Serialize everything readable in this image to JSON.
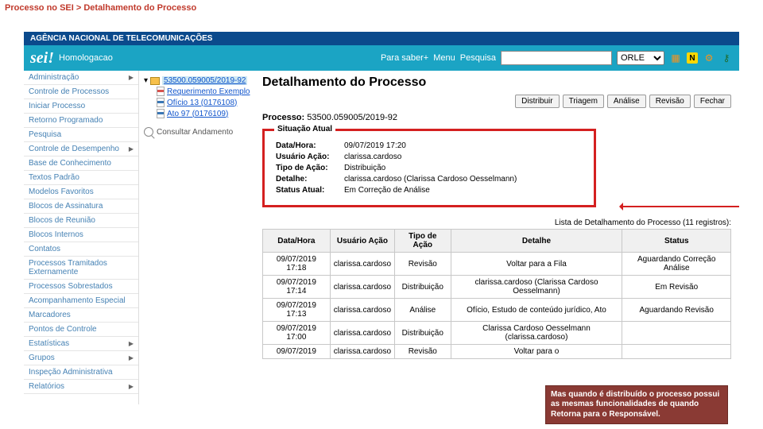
{
  "breadcrumb": "Processo no SEI > Detalhamento do Processo",
  "agency_bar": "AGÊNCIA NACIONAL DE TELECOMUNICAÇÕES",
  "header": {
    "logo": "sei!",
    "environment": "Homologacao",
    "para_saber": "Para saber+",
    "menu": "Menu",
    "pesquisa_label": "Pesquisa",
    "search_value": "",
    "unit": "ORLE"
  },
  "sidebar": {
    "items": [
      {
        "label": "Administração",
        "arrow": true
      },
      {
        "label": "Controle de Processos",
        "arrow": false
      },
      {
        "label": "Iniciar Processo",
        "arrow": false
      },
      {
        "label": "Retorno Programado",
        "arrow": false
      },
      {
        "label": "Pesquisa",
        "arrow": false
      },
      {
        "label": "Controle de Desempenho",
        "arrow": true
      },
      {
        "label": "Base de Conhecimento",
        "arrow": false
      },
      {
        "label": "Textos Padrão",
        "arrow": false
      },
      {
        "label": "Modelos Favoritos",
        "arrow": false
      },
      {
        "label": "Blocos de Assinatura",
        "arrow": false
      },
      {
        "label": "Blocos de Reunião",
        "arrow": false
      },
      {
        "label": "Blocos Internos",
        "arrow": false
      },
      {
        "label": "Contatos",
        "arrow": false
      },
      {
        "label": "Processos Tramitados Externamente",
        "arrow": false
      },
      {
        "label": "Processos Sobrestados",
        "arrow": false
      },
      {
        "label": "Acompanhamento Especial",
        "arrow": false
      },
      {
        "label": "Marcadores",
        "arrow": false
      },
      {
        "label": "Pontos de Controle",
        "arrow": false
      },
      {
        "label": "Estatísticas",
        "arrow": true
      },
      {
        "label": "Grupos",
        "arrow": true
      },
      {
        "label": "Inspeção Administrativa",
        "arrow": false
      },
      {
        "label": "Relatórios",
        "arrow": true
      }
    ]
  },
  "tree": {
    "root": "53500.059005/2019-92",
    "docs": [
      {
        "label": "Requerimento Exemplo",
        "type": "pdf"
      },
      {
        "label": "Ofício 13 (0176108)",
        "type": "doc"
      },
      {
        "label": "Ato 97 (0176109)",
        "type": "doc"
      }
    ],
    "consult": "Consultar Andamento"
  },
  "content": {
    "title": "Detalhamento do Processo",
    "buttons": [
      "Distribuir",
      "Triagem",
      "Análise",
      "Revisão",
      "Fechar"
    ],
    "processo_label": "Processo:",
    "processo_num": "53500.059005/2019-92",
    "status_legend": "Situação Atual",
    "status_rows": [
      {
        "k": "Data/Hora:",
        "v": "09/07/2019 17:20"
      },
      {
        "k": "Usuário Ação:",
        "v": "clarissa.cardoso"
      },
      {
        "k": "Tipo de Ação:",
        "v": "Distribuição"
      },
      {
        "k": "Detalhe:",
        "v": "clarissa.cardoso (Clarissa Cardoso Oesselmann)"
      },
      {
        "k": "Status Atual:",
        "v": "Em Correção de Análise"
      }
    ],
    "list_caption": "Lista de Detalhamento do Processo (11 registros):",
    "table": {
      "headers": [
        "Data/Hora",
        "Usuário Ação",
        "Tipo de Ação",
        "Detalhe",
        "Status"
      ],
      "rows": [
        [
          "09/07/2019 17:18",
          "clarissa.cardoso",
          "Revisão",
          "Voltar para a Fila",
          "Aguardando Correção Análise"
        ],
        [
          "09/07/2019 17:14",
          "clarissa.cardoso",
          "Distribuição",
          "clarissa.cardoso (Clarissa Cardoso Oesselmann)",
          "Em Revisão"
        ],
        [
          "09/07/2019 17:13",
          "clarissa.cardoso",
          "Análise",
          "Ofício, Estudo de conteúdo jurídico, Ato",
          "Aguardando Revisão"
        ],
        [
          "09/07/2019 17:00",
          "clarissa.cardoso",
          "Distribuição",
          "Clarissa Cardoso Oesselmann (clarissa.cardoso)",
          ""
        ],
        [
          "09/07/2019",
          "clarissa.cardoso",
          "Revisão",
          "Voltar para o",
          ""
        ]
      ]
    }
  },
  "callout": "Mas quando é distribuído o processo possui as mesmas funcionalidades de quando Retorna para o Responsável."
}
